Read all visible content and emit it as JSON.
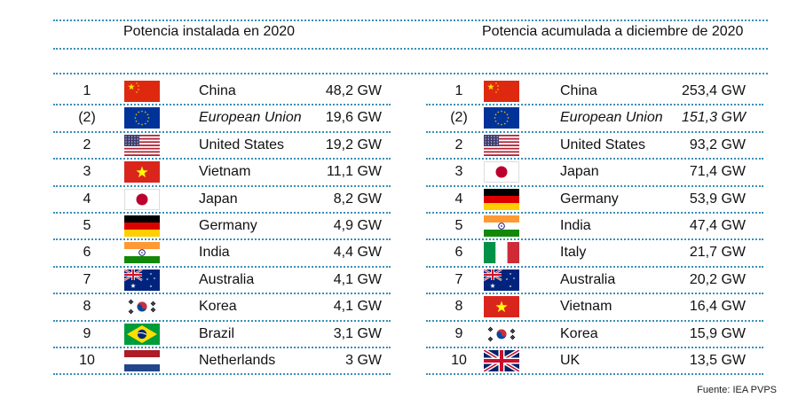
{
  "left": {
    "title": "Potencia instalada en 2020",
    "rows": [
      {
        "rank": "1",
        "country": "China",
        "value": "48,2 GW",
        "flag": "china-flag-icon",
        "italic": false
      },
      {
        "rank": "(2)",
        "country": "European Union",
        "value": "19,6 GW",
        "flag": "european-union-flag-icon",
        "italic": true
      },
      {
        "rank": "2",
        "country": "United States",
        "value": "19,2 GW",
        "flag": "united-states-flag-icon",
        "italic": false
      },
      {
        "rank": "3",
        "country": "Vietnam",
        "value": "11,1 GW",
        "flag": "vietnam-flag-icon",
        "italic": false
      },
      {
        "rank": "4",
        "country": "Japan",
        "value": "8,2 GW",
        "flag": "japan-flag-icon",
        "italic": false
      },
      {
        "rank": "5",
        "country": "Germany",
        "value": "4,9 GW",
        "flag": "germany-flag-icon",
        "italic": false
      },
      {
        "rank": "6",
        "country": "India",
        "value": "4,4 GW",
        "flag": "india-flag-icon",
        "italic": false
      },
      {
        "rank": "7",
        "country": "Australia",
        "value": "4,1 GW",
        "flag": "australia-flag-icon",
        "italic": false
      },
      {
        "rank": "8",
        "country": "Korea",
        "value": "4,1 GW",
        "flag": "korea-flag-icon",
        "italic": false
      },
      {
        "rank": "9",
        "country": "Brazil",
        "value": "3,1 GW",
        "flag": "brazil-flag-icon",
        "italic": false
      },
      {
        "rank": "10",
        "country": "Netherlands",
        "value": "3 GW",
        "flag": "netherlands-flag-icon",
        "italic": false
      }
    ]
  },
  "right": {
    "title": "Potencia acumulada a diciembre de 2020",
    "rows": [
      {
        "rank": "1",
        "country": "China",
        "value": "253,4 GW",
        "flag": "china-flag-icon",
        "italic": false
      },
      {
        "rank": "(2)",
        "country": "European Union",
        "value": "151,3 GW",
        "flag": "european-union-flag-icon",
        "italic": true
      },
      {
        "rank": "2",
        "country": "United States",
        "value": "93,2 GW",
        "flag": "united-states-flag-icon",
        "italic": false
      },
      {
        "rank": "3",
        "country": "Japan",
        "value": "71,4 GW",
        "flag": "japan-flag-icon",
        "italic": false
      },
      {
        "rank": "4",
        "country": "Germany",
        "value": "53,9 GW",
        "flag": "germany-flag-icon",
        "italic": false
      },
      {
        "rank": "5",
        "country": "India",
        "value": "47,4 GW",
        "flag": "india-flag-icon",
        "italic": false
      },
      {
        "rank": "6",
        "country": "Italy",
        "value": "21,7 GW",
        "flag": "italy-flag-icon",
        "italic": false
      },
      {
        "rank": "7",
        "country": "Australia",
        "value": "20,2 GW",
        "flag": "australia-flag-icon",
        "italic": false
      },
      {
        "rank": "8",
        "country": "Vietnam",
        "value": "16,4 GW",
        "flag": "vietnam-flag-icon",
        "italic": false
      },
      {
        "rank": "9",
        "country": "Korea",
        "value": "15,9 GW",
        "flag": "korea-flag-icon",
        "italic": false
      },
      {
        "rank": "10",
        "country": "UK",
        "value": "13,5 GW",
        "flag": "uk-flag-icon",
        "italic": false
      }
    ]
  },
  "source": "Fuente: IEA PVPS",
  "colors": {
    "rule": "#3a8fb7"
  }
}
